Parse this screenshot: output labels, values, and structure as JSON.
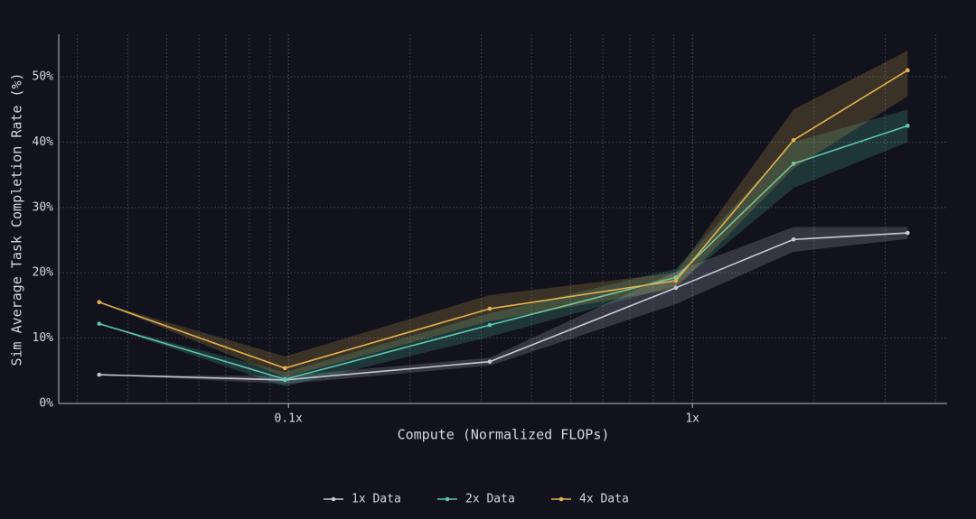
{
  "chart_data": {
    "type": "line",
    "xlabel": "Compute (Normalized FLOPs)",
    "ylabel": "Sim Average Task Completion Rate (%)",
    "x": [
      0.034,
      0.098,
      0.315,
      0.91,
      1.78,
      3.41
    ],
    "xlog": true,
    "xlim": [
      0.027,
      4.27
    ],
    "xticks": [
      {
        "value": 0.1,
        "label": "0.1x"
      },
      {
        "value": 1,
        "label": "1x"
      }
    ],
    "xminorticks": [
      0.03,
      0.04,
      0.05,
      0.06,
      0.07,
      0.08,
      0.09,
      0.2,
      0.3,
      0.4,
      0.5,
      0.6,
      0.7,
      0.8,
      0.9,
      2,
      3,
      4
    ],
    "ylim": [
      0,
      56.5
    ],
    "yticks": [
      {
        "value": 0,
        "label": "0%"
      },
      {
        "value": 10,
        "label": "10%"
      },
      {
        "value": 20,
        "label": "20%"
      },
      {
        "value": 30,
        "label": "30%"
      },
      {
        "value": 40,
        "label": "40%"
      },
      {
        "value": 50,
        "label": "50%"
      }
    ],
    "grid": true,
    "legend": "bottom",
    "series": [
      {
        "name": "1x Data",
        "color": "#c9c9d6",
        "values": [
          4.4,
          3.6,
          6.4,
          17.7,
          25.1,
          26.1
        ],
        "lower": [
          4.4,
          3.0,
          5.8,
          15.2,
          23.2,
          25.2
        ],
        "upper": [
          4.4,
          4.2,
          7.0,
          20.2,
          27.0,
          27.0
        ]
      },
      {
        "name": "2x Data",
        "color": "#5cc7ad",
        "values": [
          12.2,
          3.7,
          12.0,
          19.3,
          36.7,
          42.5
        ],
        "lower": [
          12.2,
          2.6,
          10.2,
          18.0,
          33.0,
          40.0
        ],
        "upper": [
          12.2,
          4.8,
          13.8,
          20.6,
          40.0,
          45.0
        ]
      },
      {
        "name": "4x Data",
        "color": "#e2b24f",
        "values": [
          15.5,
          5.4,
          14.5,
          18.8,
          40.3,
          51.0
        ],
        "lower": [
          15.5,
          4.0,
          12.6,
          17.6,
          36.0,
          47.0
        ],
        "upper": [
          15.5,
          7.2,
          16.6,
          20.0,
          45.0,
          54.0
        ]
      }
    ]
  }
}
